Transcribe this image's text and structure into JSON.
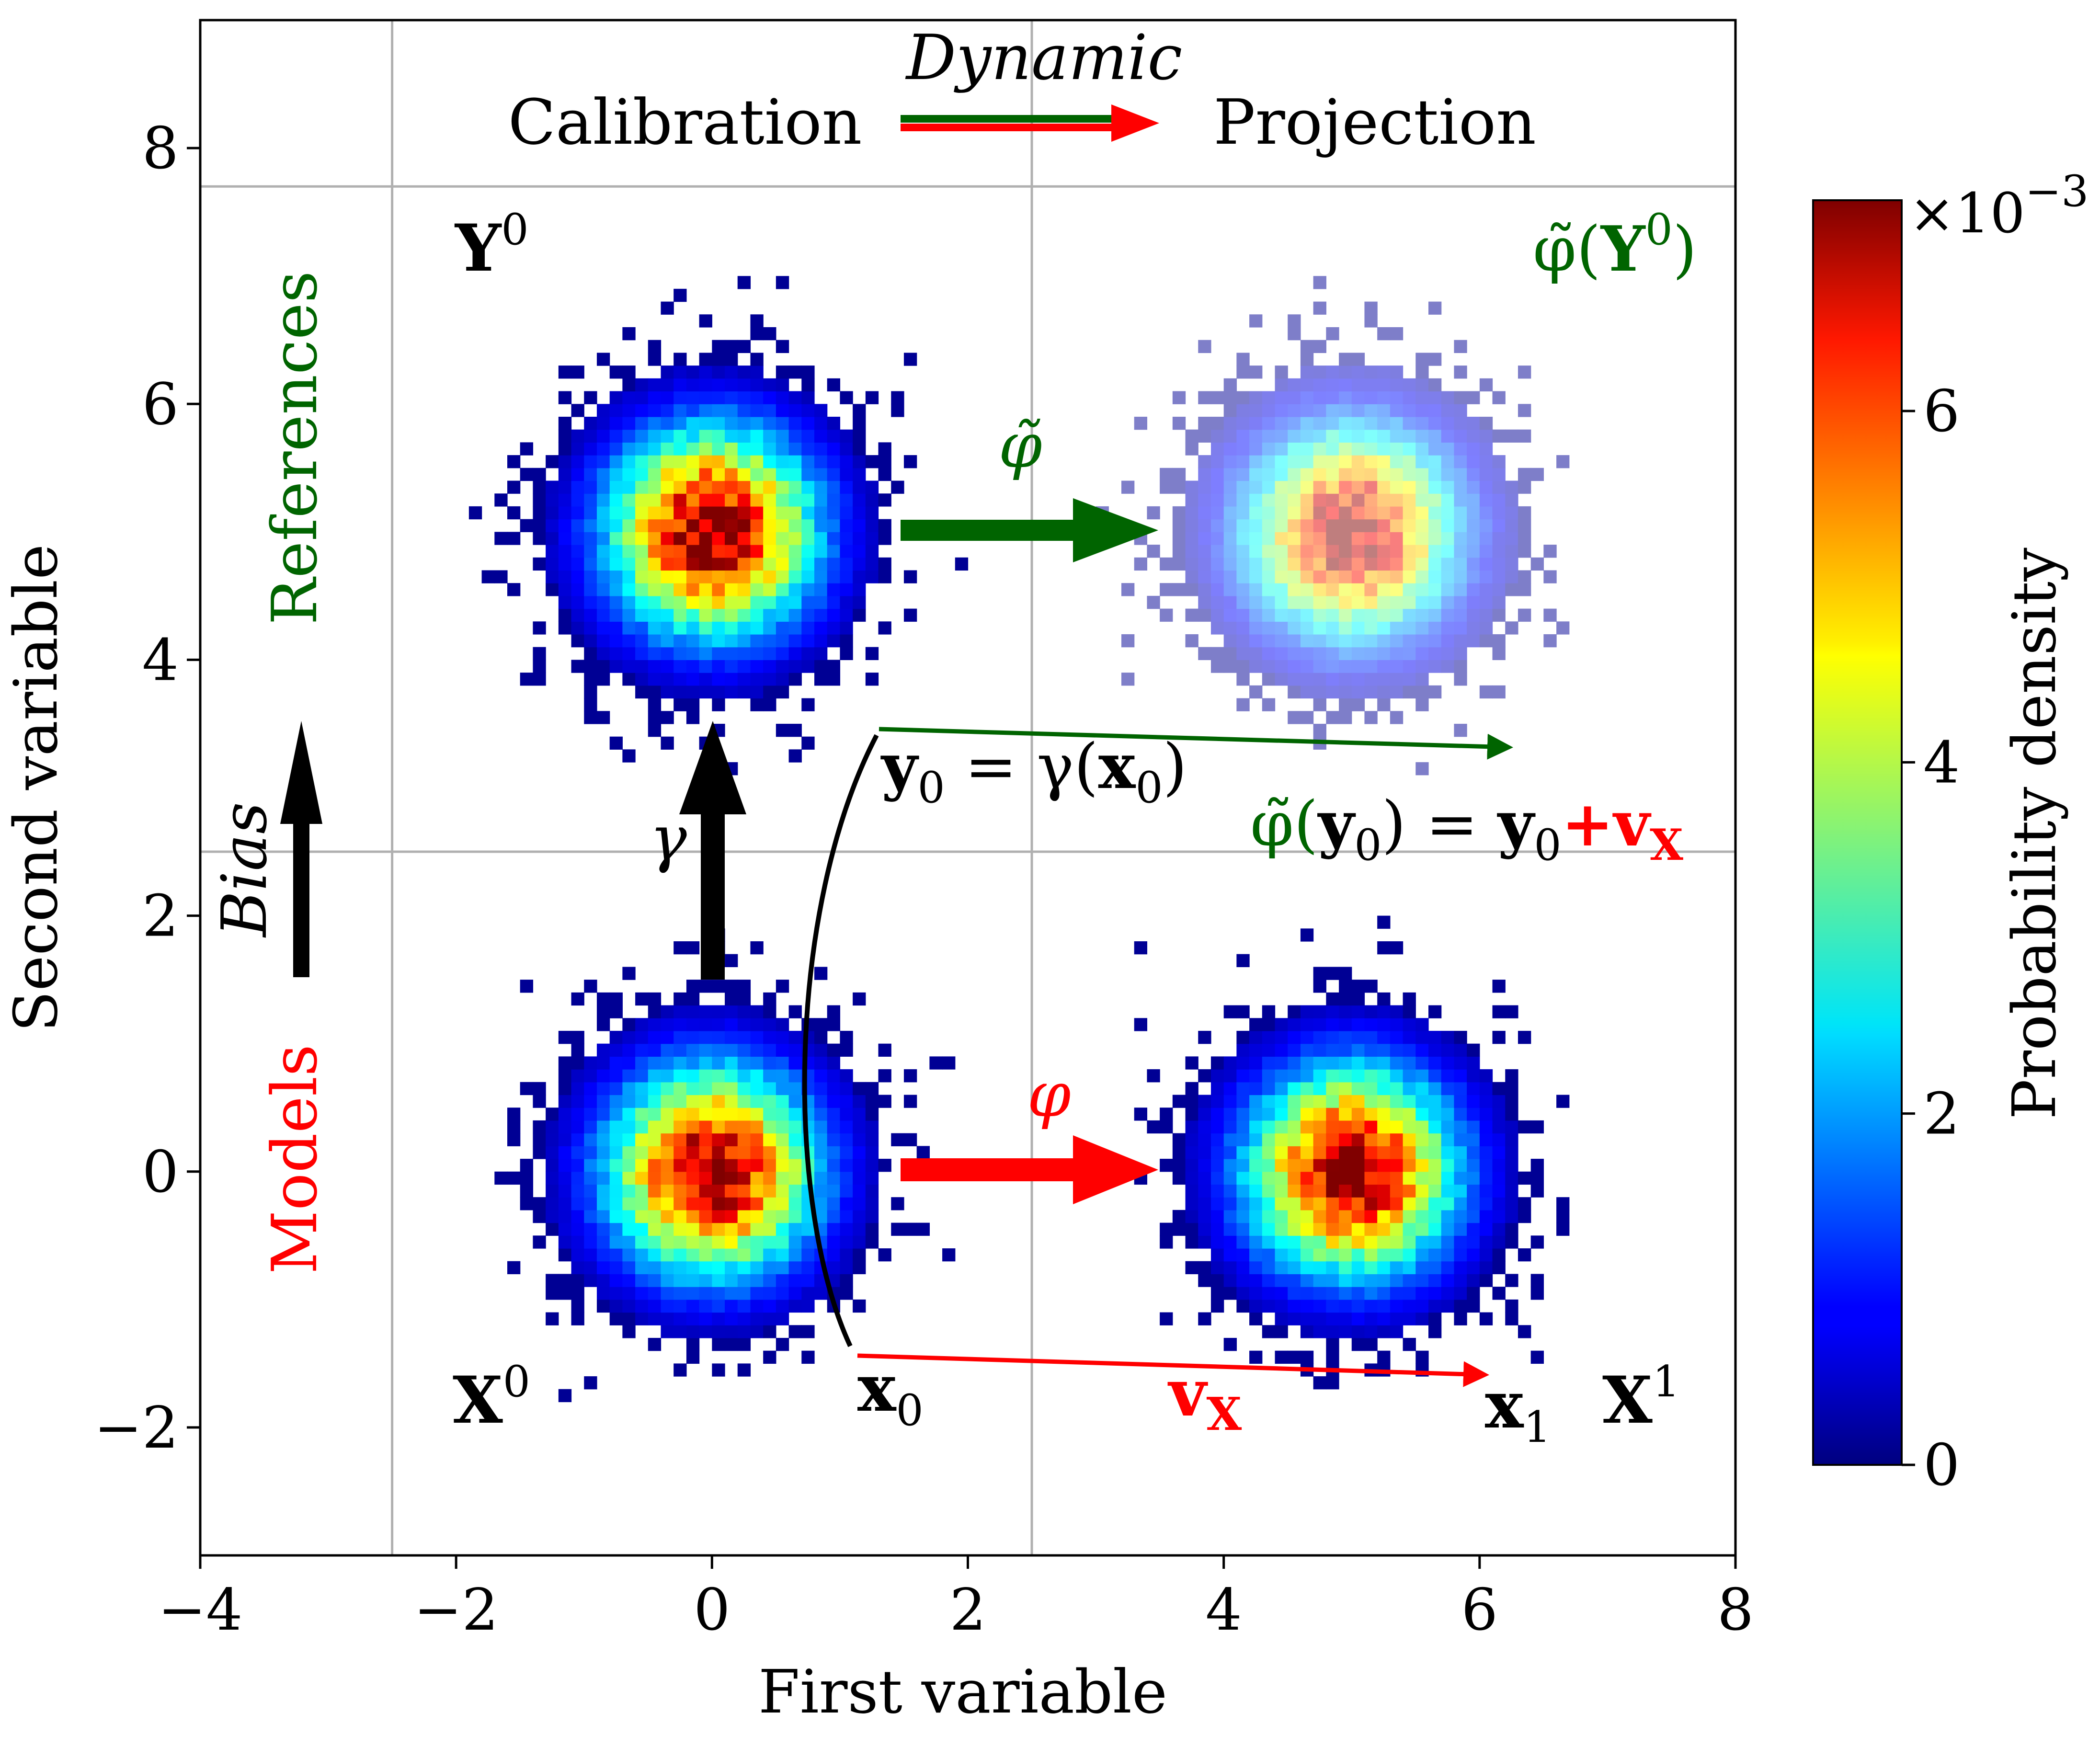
{
  "chart_data": {
    "type": "heatmap",
    "xlabel": "First variable",
    "ylabel": "Second variable",
    "xlim": [
      -4,
      8
    ],
    "ylim": [
      -3,
      9
    ],
    "xticks": [
      -4,
      -2,
      0,
      2,
      4,
      6,
      8
    ],
    "xtick_labels": [
      "−4",
      "−2",
      "0",
      "2",
      "4",
      "6",
      "8"
    ],
    "yticks": [
      -2,
      0,
      2,
      4,
      6,
      8
    ],
    "ytick_labels": [
      "−2",
      "0",
      "2",
      "4",
      "6",
      "8"
    ],
    "reference_lines": {
      "x": [
        -2.5,
        2.5
      ],
      "y": [
        2.5,
        7.7
      ]
    },
    "clusters": [
      {
        "name": "Y^0",
        "center": [
          0,
          5
        ],
        "faded": false
      },
      {
        "name": "φ̃(Y^0)",
        "center": [
          5,
          5
        ],
        "faded": true
      },
      {
        "name": "X^0",
        "center": [
          0,
          0
        ],
        "faded": false
      },
      {
        "name": "X^1",
        "center": [
          5,
          0
        ],
        "faded": false
      }
    ],
    "colorbar": {
      "label": "Probability density",
      "range": [
        0,
        0.0072
      ],
      "ticks": [
        0,
        2,
        4,
        6
      ],
      "tick_labels": [
        "0",
        "2",
        "4",
        "6"
      ],
      "multiplier": "×10",
      "multiplier_exp": "−3",
      "colormap": "jet"
    },
    "annotations": {
      "calibration": "Calibration",
      "dynamic": "Dynamic",
      "projection": "Projection",
      "references": "References",
      "models": "Models",
      "bias": "Bias",
      "gamma": "γ",
      "phi": "φ",
      "phi_tilde": "φ̃",
      "Y0_base": "Y",
      "Y0_sup": "0",
      "phiY0_a": "φ̃(",
      "phiY0_b": "Y",
      "phiY0_sup": "0",
      "phiY0_c": ")",
      "X0_base": "X",
      "X0_sup": "0",
      "X1_base": "X",
      "X1_sup": "1",
      "x0_base": "x",
      "x0_sub": "0",
      "x1_base": "x",
      "x1_sub": "1",
      "y0_eq_a": "y",
      "y0_eq_b": "0",
      "y0_eq_c": " = γ(",
      "y0_eq_d": "x",
      "y0_eq_e": "0",
      "y0_eq_f": ")",
      "phiy0_a": "φ̃(",
      "phiy0_b": "y",
      "phiy0_c": "0",
      "phiy0_d": ") = ",
      "phiy0_e": "y",
      "phiy0_f": "0",
      "phiy0_g": "+v",
      "phiy0_h": "X",
      "vx_a": "v",
      "vx_b": "X"
    },
    "colors": {
      "green": "#006400",
      "red": "#ff0000",
      "black": "#000000",
      "grid": "#b0b0b0"
    }
  }
}
